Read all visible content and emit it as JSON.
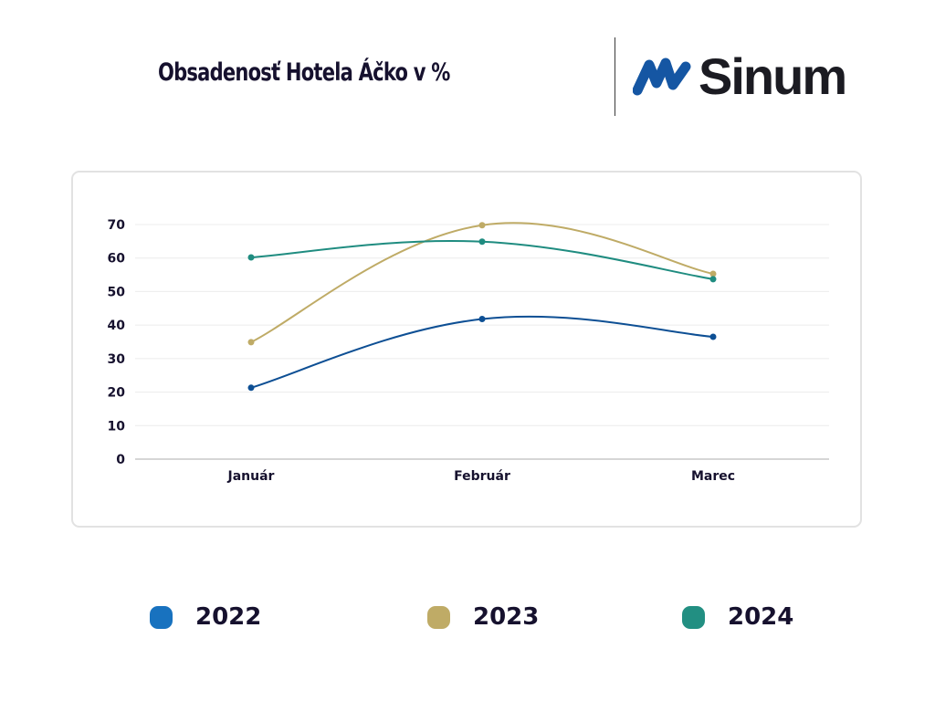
{
  "header": {
    "title": "Obsadenosť Hotela Áčko v %",
    "logo_icon": "sinum-wave-icon",
    "logo_text": "Sinum"
  },
  "colors": {
    "2022": "#0d4f94",
    "2023": "#bfab66",
    "2024": "#1f8c80",
    "legend_2022": "#1872bf",
    "legend_2023": "#bfab66",
    "legend_2024": "#228f82",
    "logo_blue": "#1556a3"
  },
  "chart_data": {
    "type": "line",
    "title": "Obsadenosť Hotela Áčko v %",
    "xlabel": "",
    "ylabel": "",
    "categories": [
      "Január",
      "Február",
      "Marec"
    ],
    "yticks": [
      "0",
      "10",
      "20",
      "30",
      "40",
      "50",
      "60",
      "70"
    ],
    "ylim": [
      0,
      70
    ],
    "grid": true,
    "smooth": true,
    "legend_position": "bottom",
    "series": [
      {
        "name": "2022",
        "values": [
          21.3,
          41.8,
          36.5
        ]
      },
      {
        "name": "2023",
        "values": [
          34.9,
          69.8,
          55.3
        ]
      },
      {
        "name": "2024",
        "values": [
          60.2,
          64.9,
          53.7
        ]
      }
    ]
  },
  "legend": [
    {
      "label": "2022"
    },
    {
      "label": "2023"
    },
    {
      "label": "2024"
    }
  ]
}
